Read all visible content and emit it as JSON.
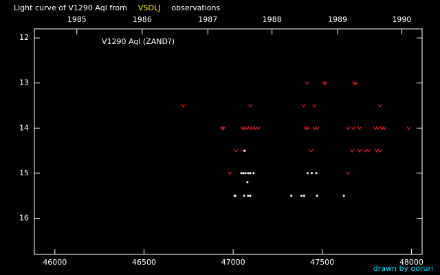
{
  "chart_data": {
    "type": "scatter",
    "title_parts": [
      {
        "text": "Light curve of V1290 Aql from",
        "color": "#ffffff"
      },
      {
        "text": "VSOLJ",
        "color": "#ffff00"
      },
      {
        "text": "observations",
        "color": "#ffffff"
      }
    ],
    "annotation": "V1290 Aql (ZAND?)",
    "footer": "drawn by ooruri",
    "background": "#000000",
    "axis_color": "#ffffff",
    "invert_y": true,
    "xlim": [
      45885,
      48060
    ],
    "ylim": [
      16.8,
      11.8
    ],
    "xticks": [
      46000,
      46500,
      47000,
      47500,
      48000
    ],
    "yticks": [
      12,
      13,
      14,
      15,
      16
    ],
    "x2ticks": [
      {
        "value": 46123,
        "label": "1985"
      },
      {
        "value": 46490,
        "label": "1986"
      },
      {
        "value": 46858,
        "label": "1987"
      },
      {
        "value": 47218,
        "label": "1988"
      },
      {
        "value": 47586,
        "label": "1989"
      },
      {
        "value": 47946,
        "label": "1990"
      }
    ],
    "series": [
      {
        "marker": "v",
        "color": "#ff2020",
        "x": [
          46720,
          46939,
          46946,
          46981,
          47015,
          47057,
          47096,
          47054,
          47065,
          47080,
          47096,
          47111,
          47126,
          47142,
          47395,
          47406,
          47414,
          47418,
          47437,
          47456,
          47456,
          47471,
          47510,
          47517,
          47644,
          47644,
          47667,
          47674,
          47678,
          47690,
          47709,
          47709,
          47743,
          47759,
          47797,
          47805,
          47812,
          47824,
          47824,
          47835,
          47847,
          47985
        ],
        "values": [
          13.5,
          14,
          14,
          15,
          14.5,
          14.5,
          13.5,
          14,
          14,
          14,
          14,
          14,
          14,
          14,
          13.5,
          14,
          13,
          14,
          14.5,
          13.5,
          14,
          14,
          13,
          13,
          14,
          15,
          14.5,
          14,
          13,
          13,
          14,
          14.5,
          14.5,
          14.5,
          14,
          14.5,
          14,
          13.5,
          14.5,
          14,
          14,
          14
        ]
      },
      {
        "marker": "dot",
        "color": "#ffffff",
        "x": [
          47008,
          47012,
          47046,
          47057,
          47069,
          47065,
          47061,
          47084,
          47080,
          47096,
          47115,
          47084,
          47096,
          47326,
          47383,
          47398,
          47418,
          47441,
          47467,
          47471,
          47621
        ],
        "values": [
          15.5,
          15.5,
          15,
          15,
          15,
          14.5,
          15.5,
          15,
          15.2,
          15,
          15,
          15.5,
          15.5,
          15.5,
          15.5,
          15.5,
          15,
          15,
          15,
          15.5,
          15.5
        ]
      }
    ]
  }
}
